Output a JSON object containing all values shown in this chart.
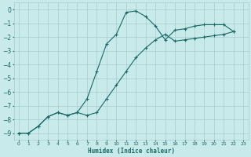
{
  "xlabel": "Humidex (Indice chaleur)",
  "bg_color": "#c8eaea",
  "grid_color": "#a8cccc",
  "line_color": "#1a6868",
  "xlim": [
    -0.5,
    23.5
  ],
  "ylim": [
    -9.5,
    0.5
  ],
  "xticks": [
    0,
    1,
    2,
    3,
    4,
    5,
    6,
    7,
    8,
    9,
    10,
    11,
    12,
    13,
    14,
    15,
    16,
    17,
    18,
    19,
    20,
    21,
    22,
    23
  ],
  "yticks": [
    0,
    -1,
    -2,
    -3,
    -4,
    -5,
    -6,
    -7,
    -8,
    -9
  ],
  "series1_x": [
    0,
    1,
    2,
    3,
    4,
    5,
    6,
    7,
    8,
    9,
    10,
    11,
    12,
    13,
    14,
    15,
    16,
    17,
    18,
    19,
    20,
    21,
    22
  ],
  "series1_y": [
    -9.0,
    -9.0,
    -8.5,
    -7.8,
    -7.5,
    -7.7,
    -7.5,
    -6.5,
    -4.5,
    -2.5,
    -1.8,
    -0.2,
    -0.1,
    -0.5,
    -1.2,
    -2.2,
    -1.5,
    -1.4,
    -1.2,
    -1.1,
    -1.1,
    -1.1,
    -1.6
  ],
  "series2_x": [
    0,
    1,
    2,
    3,
    4,
    5,
    6,
    7,
    8,
    9,
    10,
    11,
    12,
    13,
    14,
    15,
    16,
    17,
    18,
    19,
    20,
    21,
    22
  ],
  "series2_y": [
    -9.0,
    -9.0,
    -8.5,
    -7.8,
    -7.5,
    -7.7,
    -7.5,
    -7.7,
    -7.5,
    -6.5,
    -5.5,
    -4.5,
    -3.5,
    -2.8,
    -2.2,
    -1.8,
    -2.3,
    -2.2,
    -2.1,
    -2.0,
    -1.9,
    -1.8,
    -1.6
  ]
}
